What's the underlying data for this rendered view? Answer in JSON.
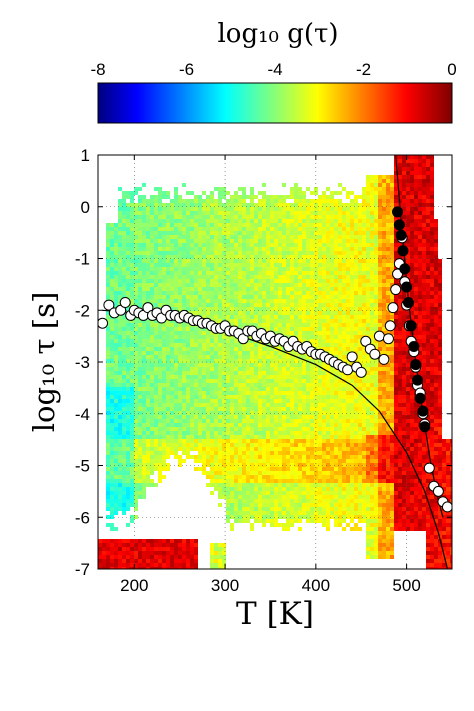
{
  "chart_data": {
    "type": "heatmap",
    "colorbar": {
      "title": "log₁₀ g(τ)",
      "ticks": [
        "-8",
        "-6",
        "-4",
        "-2",
        "0"
      ],
      "tick_values": [
        -8,
        -6,
        -4,
        -2,
        0
      ],
      "range": [
        -8,
        0
      ],
      "colormap": "jet",
      "placement": "top"
    },
    "xlabel": "T [K]",
    "ylabel": "log₁₀ τ [s]",
    "xlim": [
      160,
      550
    ],
    "ylim": [
      -7,
      1
    ],
    "xticks": [
      "200",
      "300",
      "400",
      "500"
    ],
    "xtick_values": [
      200,
      300,
      400,
      500
    ],
    "yticks": [
      "1",
      "0",
      "-1",
      "-2",
      "-3",
      "-4",
      "-5",
      "-6",
      "-7"
    ],
    "ytick_values": [
      1,
      0,
      -1,
      -2,
      -3,
      -4,
      -5,
      -6,
      -7
    ],
    "grid": true,
    "series": [
      {
        "marker": "open-circle",
        "x": [
          165,
          172,
          178,
          185,
          190,
          196,
          200,
          205,
          210,
          215,
          220,
          225,
          230,
          235,
          240,
          245,
          250,
          255,
          260,
          265,
          270,
          275,
          280,
          285,
          290,
          295,
          300,
          305,
          310,
          315,
          320,
          325,
          330,
          335,
          340,
          345,
          350,
          355,
          360,
          365,
          370,
          375,
          380,
          385,
          390,
          395,
          400,
          405,
          410,
          415,
          420,
          425,
          430,
          435,
          440,
          445,
          450,
          455,
          460,
          465,
          470,
          475,
          480,
          482,
          485,
          488,
          490,
          492,
          495,
          498,
          500,
          503,
          505,
          508,
          510,
          512,
          515,
          518,
          520,
          525,
          530,
          535,
          540,
          545
        ],
        "y": [
          -2.25,
          -1.9,
          -2.05,
          -2.0,
          -1.85,
          -2.1,
          -2.0,
          -2.05,
          -2.1,
          -1.95,
          -2.1,
          -2.05,
          -2.15,
          -2.0,
          -2.1,
          -2.1,
          -2.15,
          -2.1,
          -2.15,
          -2.2,
          -2.2,
          -2.25,
          -2.25,
          -2.3,
          -2.35,
          -2.35,
          -2.3,
          -2.4,
          -2.4,
          -2.45,
          -2.55,
          -2.4,
          -2.4,
          -2.5,
          -2.45,
          -2.55,
          -2.5,
          -2.6,
          -2.55,
          -2.6,
          -2.7,
          -2.6,
          -2.7,
          -2.75,
          -2.7,
          -2.8,
          -2.85,
          -2.85,
          -2.9,
          -2.95,
          -3.0,
          -3.05,
          -3.1,
          -3.15,
          -2.9,
          -3.1,
          -3.2,
          -2.6,
          -2.75,
          -2.85,
          -2.5,
          -2.95,
          -2.55,
          -2.3,
          -1.95,
          -1.6,
          -1.3,
          -1.1,
          -0.6,
          -1.45,
          -1.9,
          -2.3,
          -2.6,
          -2.8,
          -3.1,
          -3.45,
          -3.6,
          -4.0,
          -4.2,
          -5.05,
          -5.4,
          -5.5,
          -5.7,
          -5.8
        ],
        "color": "#ffffff"
      },
      {
        "marker": "filled-circle",
        "x": [
          490,
          492,
          494,
          496,
          498,
          500,
          502,
          505,
          508,
          510,
          512,
          515,
          518,
          520
        ],
        "y": [
          -0.1,
          -0.35,
          -0.55,
          -0.85,
          -1.2,
          -1.55,
          -1.85,
          -2.3,
          -2.7,
          -3.05,
          -3.35,
          -3.7,
          -3.95,
          -4.25
        ],
        "color": "#000000"
      },
      {
        "marker": "line",
        "x": [
          165,
          200,
          250,
          300,
          350,
          400,
          440,
          470,
          500,
          520,
          535,
          545
        ],
        "y": [
          -2.0,
          -2.05,
          -2.2,
          -2.4,
          -2.7,
          -3.05,
          -3.45,
          -3.95,
          -4.75,
          -5.5,
          -6.3,
          -7.0
        ],
        "color": "#000000"
      },
      {
        "marker": "line",
        "x": [
          488,
          495,
          502,
          510,
          518,
          526,
          534,
          540
        ],
        "y": [
          1.0,
          -0.5,
          -1.8,
          -3.0,
          -4.0,
          -4.9,
          -5.6,
          -6.0
        ],
        "color": "#000000"
      }
    ],
    "annotations": []
  }
}
